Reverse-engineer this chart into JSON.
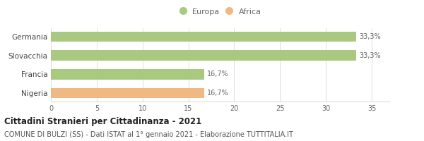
{
  "categories": [
    "Nigeria",
    "Francia",
    "Slovacchia",
    "Germania"
  ],
  "values": [
    16.7,
    16.7,
    33.3,
    33.3
  ],
  "bar_colors": [
    "#f0b983",
    "#a8c97f",
    "#a8c97f",
    "#a8c97f"
  ],
  "label_texts": [
    "16,7%",
    "16,7%",
    "33,3%",
    "33,3%"
  ],
  "legend_labels": [
    "Europa",
    "Africa"
  ],
  "legend_colors": [
    "#a8c97f",
    "#f0b983"
  ],
  "xlim": [
    0,
    37
  ],
  "xticks": [
    0,
    5,
    10,
    15,
    20,
    25,
    30,
    35
  ],
  "title": "Cittadini Stranieri per Cittadinanza - 2021",
  "subtitle": "COMUNE DI BULZI (SS) - Dati ISTAT al 1° gennaio 2021 - Elaborazione TUTTITALIA.IT",
  "title_fontsize": 8.5,
  "subtitle_fontsize": 7.0,
  "bar_label_fontsize": 7.0,
  "tick_fontsize": 7.0,
  "category_fontsize": 7.5,
  "background_color": "#ffffff",
  "grid_color": "#dddddd"
}
